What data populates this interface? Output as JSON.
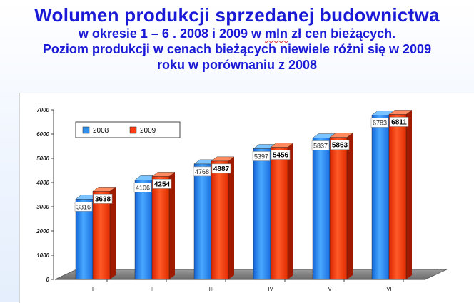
{
  "title": {
    "line1": "Wolumen produkcji sprzedanej budownictwa",
    "line2_pre": "w okresie 1 – 6 . 2008 i 2009 w ",
    "line2_mln": "mln",
    "line2_post": " zł cen bieżących.",
    "line3": "Poziom produkcji w cenach bieżących niewiele różni się w 2009",
    "line4": "roku w porównaniu z 2008"
  },
  "colors": {
    "title": "#1a1ad6",
    "series_2008": "#2f8ff0",
    "series_2009": "#ff3a10"
  },
  "chart_data": {
    "type": "bar",
    "categories": [
      "I",
      "II",
      "III",
      "IV",
      "V",
      "VI"
    ],
    "series": [
      {
        "name": "2008",
        "values": [
          3316,
          4106,
          4768,
          5397,
          5837,
          6783
        ]
      },
      {
        "name": "2009",
        "values": [
          3638,
          4254,
          4887,
          5456,
          5863,
          6811
        ]
      }
    ],
    "yticks": [
      "0",
      "1000",
      "2000",
      "3000",
      "4000",
      "5000",
      "6000",
      "7000"
    ],
    "ylim": [
      0,
      7000
    ],
    "legend_position": "top-left",
    "grid": false,
    "style": "3d"
  }
}
